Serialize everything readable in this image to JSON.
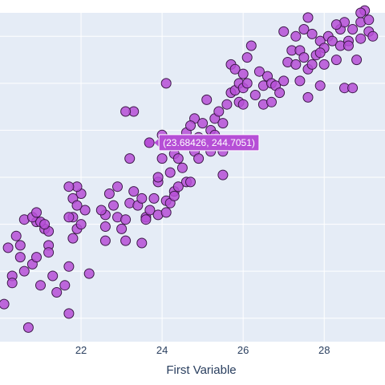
{
  "chart_data": {
    "type": "scatter",
    "xlabel": "First Variable",
    "ylabel": "",
    "xlim": [
      20.0,
      29.5
    ],
    "ylim": [
      160,
      300
    ],
    "x_ticks": [
      22,
      24,
      26,
      28
    ],
    "grid": true,
    "colors": {
      "plot_bg": "#e5ecf6",
      "grid": "#ffffff",
      "marker": "#b64fd6",
      "marker_edge": "#3d1a4a",
      "text": "#2a3f5f"
    },
    "hover": {
      "label": "(23.68426, 244.7051)",
      "x": 23.68426,
      "y": 244.7051
    },
    "series": [
      {
        "points": [
          [
            20.1,
            176
          ],
          [
            20.3,
            188
          ],
          [
            20.5,
            196
          ],
          [
            20.6,
            190
          ],
          [
            20.7,
            166
          ],
          [
            20.8,
            193
          ],
          [
            20.9,
            196
          ],
          [
            21.0,
            184
          ],
          [
            20.9,
            211
          ],
          [
            21.1,
            208
          ],
          [
            21.2,
            207
          ],
          [
            21.0,
            211
          ],
          [
            20.4,
            205
          ],
          [
            20.6,
            212
          ],
          [
            20.8,
            213
          ],
          [
            20.9,
            215
          ],
          [
            21.1,
            210
          ],
          [
            20.5,
            201
          ],
          [
            20.3,
            185
          ],
          [
            21.3,
            188
          ],
          [
            21.4,
            181
          ],
          [
            21.2,
            201
          ],
          [
            21.6,
            184
          ],
          [
            21.7,
            172
          ],
          [
            21.7,
            192
          ],
          [
            21.8,
            204
          ],
          [
            21.8,
            213
          ],
          [
            22.1,
            216
          ],
          [
            21.9,
            208
          ],
          [
            22.0,
            210
          ],
          [
            22.2,
            189
          ],
          [
            21.7,
            213
          ],
          [
            22.0,
            223
          ],
          [
            21.9,
            226
          ],
          [
            21.8,
            221
          ],
          [
            21.7,
            226
          ],
          [
            22.6,
            214
          ],
          [
            22.5,
            216
          ],
          [
            22.6,
            203
          ],
          [
            22.6,
            209
          ],
          [
            22.7,
            223
          ],
          [
            22.8,
            218
          ],
          [
            22.9,
            213
          ],
          [
            23.0,
            208
          ],
          [
            23.1,
            203
          ],
          [
            23.1,
            212
          ],
          [
            23.2,
            219
          ],
          [
            23.3,
            224
          ],
          [
            23.2,
            238
          ],
          [
            23.3,
            258
          ],
          [
            23.4,
            218
          ],
          [
            23.5,
            202
          ],
          [
            23.5,
            221
          ],
          [
            23.6,
            213
          ],
          [
            23.7,
            216
          ],
          [
            23.6,
            212
          ],
          [
            23.8,
            221
          ],
          [
            23.9,
            228
          ],
          [
            23.9,
            214
          ],
          [
            23.9,
            230
          ],
          [
            24.0,
            248
          ],
          [
            24.0,
            238
          ],
          [
            24.1,
            220
          ],
          [
            24.1,
            215
          ],
          [
            24.2,
            219
          ],
          [
            24.3,
            224
          ],
          [
            24.2,
            232
          ],
          [
            24.3,
            240
          ],
          [
            24.4,
            238
          ],
          [
            24.5,
            245
          ],
          [
            24.5,
            234
          ],
          [
            24.3,
            222
          ],
          [
            24.6,
            249
          ],
          [
            24.6,
            228
          ],
          [
            24.7,
            228
          ],
          [
            24.8,
            241
          ],
          [
            24.8,
            255
          ],
          [
            24.9,
            247
          ],
          [
            25.0,
            253
          ],
          [
            24.9,
            238
          ],
          [
            25.0,
            245
          ],
          [
            25.1,
            263
          ],
          [
            25.2,
            250
          ],
          [
            25.3,
            255
          ],
          [
            25.4,
            258
          ],
          [
            25.3,
            248
          ],
          [
            25.5,
            253
          ],
          [
            25.5,
            241
          ],
          [
            25.6,
            261
          ],
          [
            25.7,
            266
          ],
          [
            25.7,
            278
          ],
          [
            25.8,
            267
          ],
          [
            25.8,
            276
          ],
          [
            25.9,
            270
          ],
          [
            25.9,
            262
          ],
          [
            26.0,
            261
          ],
          [
            26.0,
            268
          ],
          [
            26.0,
            274
          ],
          [
            26.1,
            270
          ],
          [
            26.1,
            281
          ],
          [
            26.2,
            286
          ],
          [
            26.3,
            265
          ],
          [
            26.4,
            275
          ],
          [
            26.5,
            261
          ],
          [
            26.5,
            269
          ],
          [
            26.6,
            273
          ],
          [
            26.7,
            270
          ],
          [
            26.7,
            262
          ],
          [
            26.8,
            269
          ],
          [
            26.9,
            266
          ],
          [
            27.0,
            292
          ],
          [
            27.0,
            271
          ],
          [
            27.1,
            279
          ],
          [
            27.2,
            284
          ],
          [
            27.3,
            290
          ],
          [
            27.3,
            278
          ],
          [
            27.4,
            271
          ],
          [
            27.4,
            284
          ],
          [
            27.5,
            281
          ],
          [
            27.6,
            276
          ],
          [
            27.5,
            293
          ],
          [
            27.6,
            298
          ],
          [
            27.7,
            278
          ],
          [
            27.7,
            291
          ],
          [
            27.8,
            282
          ],
          [
            27.9,
            288
          ],
          [
            28.0,
            285
          ],
          [
            27.9,
            269
          ],
          [
            28.0,
            278
          ],
          [
            28.1,
            290
          ],
          [
            28.2,
            288
          ],
          [
            28.3,
            280
          ],
          [
            28.4,
            286
          ],
          [
            28.4,
            293
          ],
          [
            28.5,
            296
          ],
          [
            28.5,
            268
          ],
          [
            28.6,
            288
          ],
          [
            28.6,
            286
          ],
          [
            28.7,
            293
          ],
          [
            28.8,
            280
          ],
          [
            28.9,
            289
          ],
          [
            28.9,
            296
          ],
          [
            29.0,
            301
          ],
          [
            29.1,
            292
          ],
          [
            29.1,
            297
          ],
          [
            29.2,
            290
          ],
          [
            24.1,
            270
          ],
          [
            23.1,
            258
          ],
          [
            21.2,
            198
          ],
          [
            20.2,
            200
          ],
          [
            28.7,
            268
          ],
          [
            25.5,
            231
          ],
          [
            26.2,
            246
          ],
          [
            24.4,
            226
          ],
          [
            22.9,
            226
          ],
          [
            27.6,
            264
          ],
          [
            28.3,
            295
          ],
          [
            27.9,
            283
          ],
          [
            28.9,
            300
          ],
          [
            21.9,
            218
          ],
          [
            24.7,
            252
          ],
          [
            25.2,
            241
          ]
        ]
      }
    ]
  }
}
